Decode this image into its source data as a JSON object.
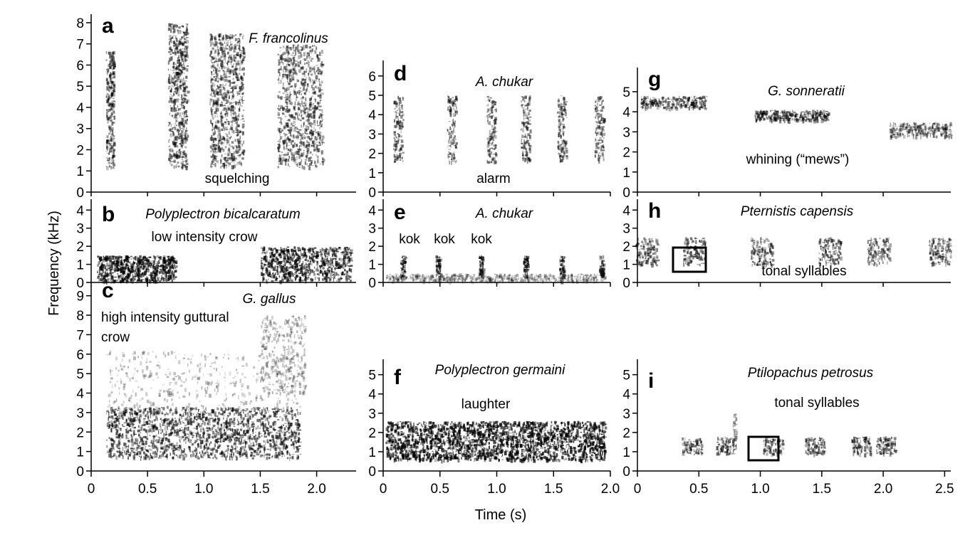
{
  "figure": {
    "ylabel": "Frequency (kHz)",
    "xlabel": "Time (s)"
  },
  "chart_data": [
    {
      "type": "heatmap",
      "panel_letter": "a",
      "species": "F. francolinus",
      "call": "squelching",
      "xticks": [],
      "yticks": [
        "0",
        "1",
        "2",
        "3",
        "4",
        "5",
        "6",
        "7",
        "8"
      ],
      "ylim": [
        0,
        8.4
      ]
    },
    {
      "type": "heatmap",
      "panel_letter": "b",
      "species": "Polyplectron bicalcaratum",
      "call": "low intensity crow",
      "xticks": [],
      "yticks": [
        "0",
        "1",
        "2",
        "3",
        "4"
      ],
      "ylim": [
        0,
        4.6
      ]
    },
    {
      "type": "heatmap",
      "panel_letter": "c",
      "species": "G. gallus",
      "call": "high intensity guttural crow",
      "xticks": [
        "0",
        "0.5",
        "1.0",
        "1.5",
        "2.0"
      ],
      "yticks": [
        "0",
        "1",
        "2",
        "3",
        "4",
        "5",
        "6",
        "7",
        "8",
        "9"
      ],
      "ylim": [
        0,
        9.5
      ],
      "xlim": [
        0,
        2.35
      ]
    },
    {
      "type": "heatmap",
      "panel_letter": "d",
      "species": "A. chukar",
      "call": "alarm",
      "xticks": [],
      "yticks": [
        "0",
        "1",
        "2",
        "3",
        "4",
        "5",
        "6"
      ],
      "ylim": [
        0,
        6.8
      ]
    },
    {
      "type": "heatmap",
      "panel_letter": "e",
      "species": "A. chukar",
      "call": "kok kok kok",
      "xticks": [],
      "yticks": [
        "0",
        "1",
        "2",
        "3",
        "4"
      ],
      "ylim": [
        0,
        4.6
      ]
    },
    {
      "type": "heatmap",
      "panel_letter": "f",
      "species": "Polyplectron germaini",
      "call": "laughter",
      "xticks": [
        "0",
        "0.5",
        "1.0",
        "1.5",
        "2.0"
      ],
      "yticks": [
        "0",
        "1",
        "2",
        "3",
        "4",
        "5"
      ],
      "ylim": [
        0,
        5.8
      ],
      "xlim": [
        0,
        2.0
      ]
    },
    {
      "type": "heatmap",
      "panel_letter": "g",
      "species": "G. sonneratii",
      "call": "whining (“mews”)",
      "xticks": [],
      "yticks": [
        "0",
        "1",
        "2",
        "3",
        "4",
        "5"
      ],
      "ylim": [
        0,
        6.2
      ]
    },
    {
      "type": "heatmap",
      "panel_letter": "h",
      "species": "Pternistis capensis",
      "call": "tonal syllables",
      "xticks": [],
      "yticks": [
        "0",
        "1",
        "2",
        "3",
        "4"
      ],
      "ylim": [
        0,
        4.6
      ]
    },
    {
      "type": "heatmap",
      "panel_letter": "i",
      "species": "Ptilopachus petrosus",
      "call": "tonal syllables",
      "xticks": [
        "0",
        "0.5",
        "1.0",
        "1.5",
        "2.0",
        "2.5"
      ],
      "yticks": [
        "0",
        "1",
        "2",
        "3",
        "4",
        "5"
      ],
      "ylim": [
        0,
        5.8
      ],
      "xlim": [
        0,
        2.55
      ]
    }
  ]
}
